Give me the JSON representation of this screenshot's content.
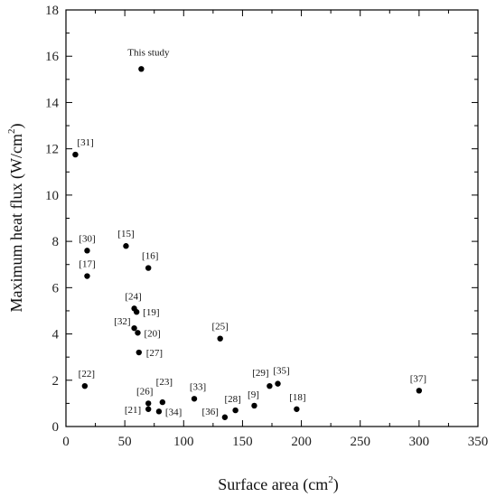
{
  "chart_data": {
    "type": "scatter",
    "xlabel_main": "Surface area (cm",
    "xlabel_sup": "2",
    "xlabel_end": ")",
    "ylabel_main": "Maximum heat flux (W/cm",
    "ylabel_sup": "2",
    "ylabel_end": ")",
    "xlim": [
      0,
      350
    ],
    "ylim": [
      0,
      18
    ],
    "xticks": [
      0,
      50,
      100,
      150,
      200,
      250,
      300,
      350
    ],
    "yticks": [
      0,
      2,
      4,
      6,
      8,
      10,
      12,
      14,
      16,
      18
    ],
    "grid": false,
    "marker_color": "#000000",
    "points": [
      {
        "label": "This study",
        "x": 64,
        "y": 15.45
      },
      {
        "label": "[31]",
        "x": 8,
        "y": 11.75
      },
      {
        "label": "[30]",
        "x": 18,
        "y": 7.6
      },
      {
        "label": "[17]",
        "x": 18,
        "y": 6.5
      },
      {
        "label": "[15]",
        "x": 51,
        "y": 7.8
      },
      {
        "label": "[16]",
        "x": 70,
        "y": 6.85
      },
      {
        "label": "[24]",
        "x": 58,
        "y": 5.1
      },
      {
        "label": "[19]",
        "x": 60,
        "y": 4.95
      },
      {
        "label": "[32]",
        "x": 58,
        "y": 4.25
      },
      {
        "label": "[20]",
        "x": 61,
        "y": 4.05
      },
      {
        "label": "[27]",
        "x": 62,
        "y": 3.2
      },
      {
        "label": "[25]",
        "x": 131,
        "y": 3.8
      },
      {
        "label": "[22]",
        "x": 16,
        "y": 1.75
      },
      {
        "label": "[26]",
        "x": 70,
        "y": 1.0
      },
      {
        "label": "[23]",
        "x": 82,
        "y": 1.05
      },
      {
        "label": "[21]",
        "x": 70,
        "y": 0.75
      },
      {
        "label": "[34]",
        "x": 79,
        "y": 0.65
      },
      {
        "label": "[33]",
        "x": 109,
        "y": 1.2
      },
      {
        "label": "[28]",
        "x": 144,
        "y": 0.7
      },
      {
        "label": "[36]",
        "x": 135,
        "y": 0.4
      },
      {
        "label": "[9]",
        "x": 160,
        "y": 0.9
      },
      {
        "label": "[29]",
        "x": 173,
        "y": 1.75
      },
      {
        "label": "[35]",
        "x": 180,
        "y": 1.85
      },
      {
        "label": "[18]",
        "x": 196,
        "y": 0.75
      },
      {
        "label": "[37]",
        "x": 300,
        "y": 1.55
      }
    ]
  }
}
